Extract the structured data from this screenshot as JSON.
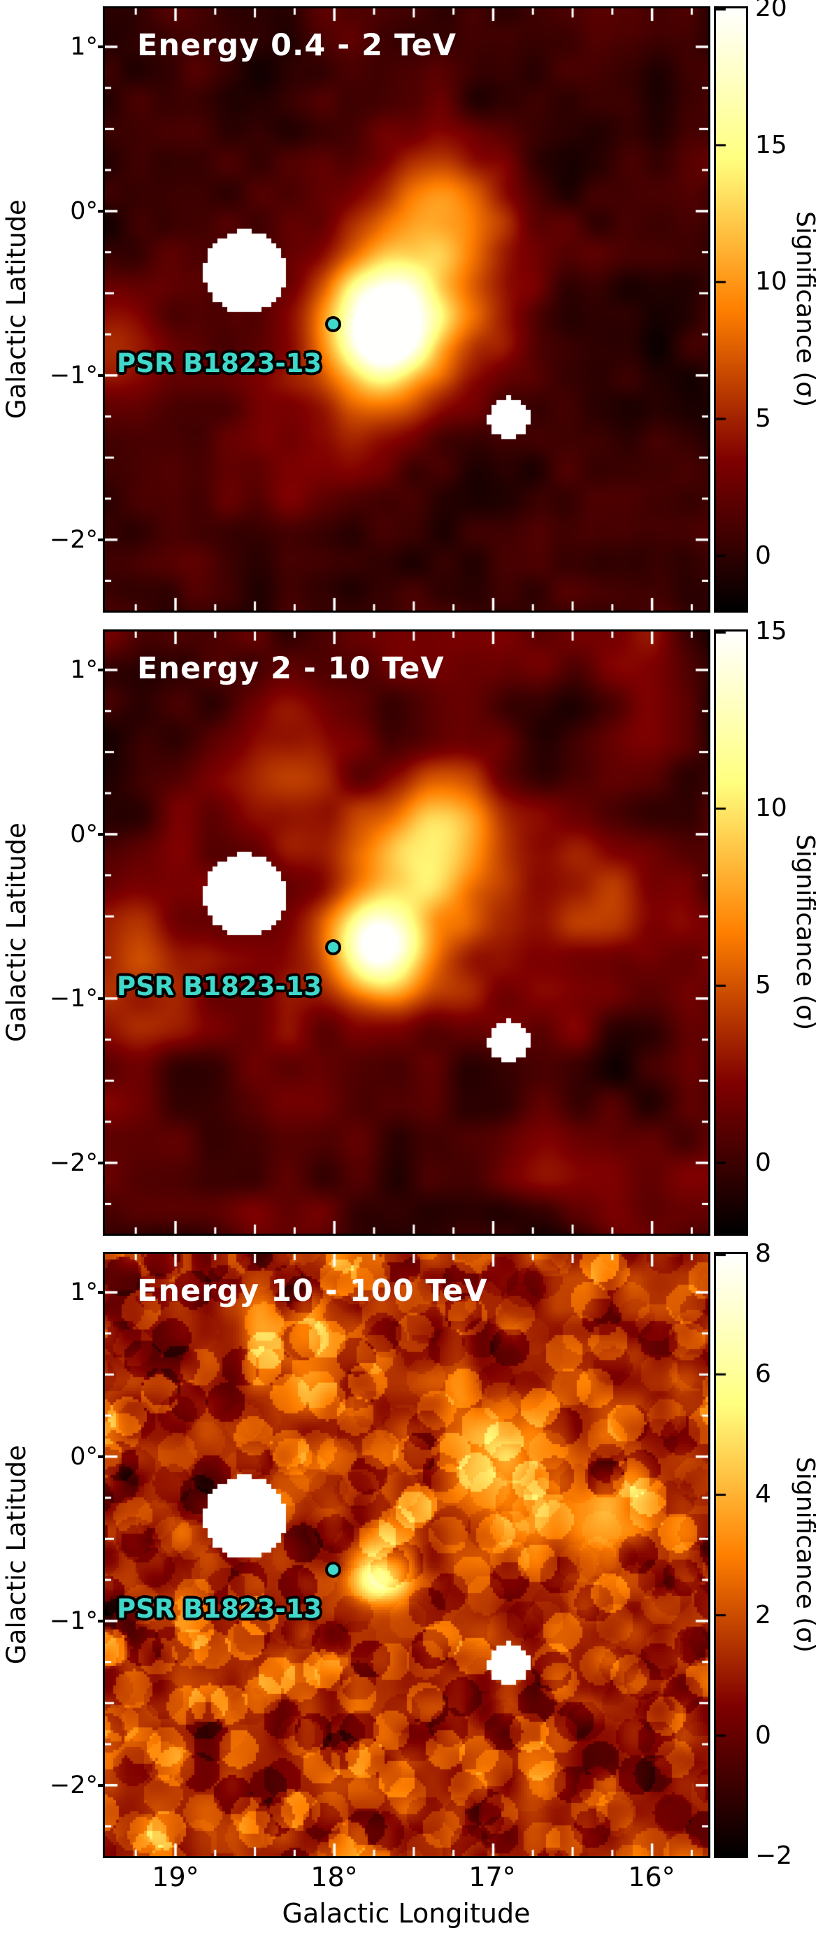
{
  "axes": {
    "xlabel": "Galactic Longitude",
    "ylabel": "Galactic Latitude",
    "xtick_labels": [
      "19°",
      "18°",
      "17°",
      "16°"
    ],
    "xticks_deg": [
      19,
      18,
      17,
      16
    ],
    "ytick_labels": [
      "1°",
      "0°",
      "−1°",
      "−2°"
    ],
    "yticks_deg": [
      1,
      0,
      -1,
      -2
    ],
    "lon_range": [
      19.44,
      15.65
    ],
    "lat_range": [
      1.23,
      -2.43
    ]
  },
  "pulsar": {
    "label": "PSR B1823-13",
    "lon_deg": 18.0,
    "lat_deg": -0.69,
    "marker_color": "#40d8ca"
  },
  "mask_circles": [
    {
      "lon_deg": 18.56,
      "lat_deg": -0.37,
      "radius_deg": 0.26
    },
    {
      "lon_deg": 16.9,
      "lat_deg": -1.26,
      "radius_deg": 0.13
    }
  ],
  "chart_data": [
    {
      "type": "heatmap",
      "title": "Energy 0.4 - 2 TeV",
      "energy_min_tev": 0.4,
      "energy_max_tev": 2,
      "colorbar": {
        "label": "Significance (σ)",
        "vmin": -2,
        "vmax": 20,
        "ticks": [
          20,
          15,
          10,
          5,
          0
        ],
        "tick_labels": [
          "20",
          "15",
          "10",
          "5",
          "0"
        ]
      },
      "background_sigma": 0.6,
      "sources": [
        {
          "lon_deg": 17.7,
          "lat_deg": -0.69,
          "peak_sigma": 17.0,
          "extent_deg": 0.24
        },
        {
          "lon_deg": 17.55,
          "lat_deg": -0.45,
          "peak_sigma": 8.0,
          "extent_deg": 0.45
        },
        {
          "lon_deg": 17.25,
          "lat_deg": 0.0,
          "peak_sigma": 5.5,
          "extent_deg": 0.28
        },
        {
          "lon_deg": 17.75,
          "lat_deg": -1.05,
          "peak_sigma": 5.0,
          "extent_deg": 0.32
        },
        {
          "lon_deg": 19.3,
          "lat_deg": -0.85,
          "peak_sigma": 3.5,
          "extent_deg": 0.28
        },
        {
          "lon_deg": 18.1,
          "lat_deg": -1.6,
          "peak_sigma": 2.5,
          "extent_deg": 0.3
        }
      ]
    },
    {
      "type": "heatmap",
      "title": "Energy 2 - 10 TeV",
      "energy_min_tev": 2,
      "energy_max_tev": 10,
      "colorbar": {
        "label": "Significance (σ)",
        "vmin": -2,
        "vmax": 15,
        "ticks": [
          15,
          10,
          5,
          0
        ],
        "tick_labels": [
          "15",
          "10",
          "5",
          "0"
        ]
      },
      "background_sigma": 0.7,
      "sources": [
        {
          "lon_deg": 17.72,
          "lat_deg": -0.7,
          "peak_sigma": 12.5,
          "extent_deg": 0.2
        },
        {
          "lon_deg": 17.35,
          "lat_deg": -0.05,
          "peak_sigma": 6.0,
          "extent_deg": 0.28
        },
        {
          "lon_deg": 17.6,
          "lat_deg": -0.45,
          "peak_sigma": 6.0,
          "extent_deg": 0.42
        },
        {
          "lon_deg": 19.3,
          "lat_deg": -0.85,
          "peak_sigma": 3.0,
          "extent_deg": 0.28
        },
        {
          "lon_deg": 18.3,
          "lat_deg": 0.55,
          "peak_sigma": 3.0,
          "extent_deg": 0.28
        },
        {
          "lon_deg": 16.35,
          "lat_deg": -0.4,
          "peak_sigma": 2.5,
          "extent_deg": 0.33
        }
      ]
    },
    {
      "type": "heatmap",
      "title": "Energy 10 - 100 TeV",
      "energy_min_tev": 10,
      "energy_max_tev": 100,
      "colorbar": {
        "label": "Significance (σ)",
        "vmin": -2,
        "vmax": 8,
        "ticks": [
          8,
          6,
          4,
          2,
          0,
          -2
        ],
        "tick_labels": [
          "8",
          "6",
          "4",
          "2",
          "0",
          "−2"
        ]
      },
      "background_sigma": 1.2,
      "sources": [
        {
          "lon_deg": 17.7,
          "lat_deg": -0.73,
          "peak_sigma": 5.5,
          "extent_deg": 0.13
        },
        {
          "lon_deg": 17.0,
          "lat_deg": -0.05,
          "peak_sigma": 2.6,
          "extent_deg": 0.25
        },
        {
          "lon_deg": 16.35,
          "lat_deg": -0.3,
          "peak_sigma": 2.2,
          "extent_deg": 0.28
        },
        {
          "lon_deg": 18.2,
          "lat_deg": 0.75,
          "peak_sigma": 2.0,
          "extent_deg": 0.25
        }
      ]
    }
  ]
}
